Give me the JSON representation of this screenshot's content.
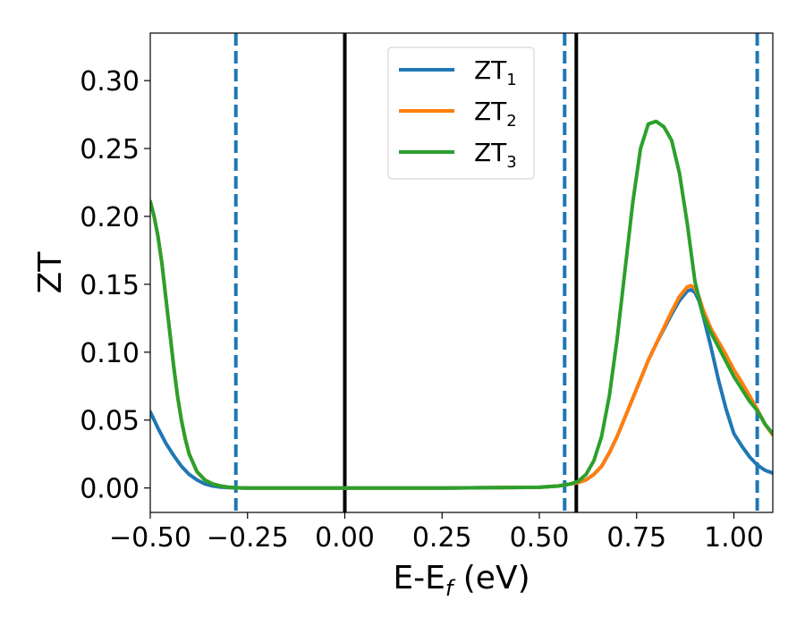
{
  "chart_data": {
    "type": "line",
    "title": "",
    "xlabel": "E-E",
    "xlabel_sub": "f",
    "xlabel_unit": " (eV)",
    "ylabel": "ZT",
    "xlim": [
      -0.5,
      1.1
    ],
    "ylim": [
      -0.018,
      0.335
    ],
    "xticks": [
      -0.5,
      -0.25,
      0.0,
      0.25,
      0.5,
      0.75,
      1.0
    ],
    "xtick_labels": [
      "−0.50",
      "−0.25",
      "0.00",
      "0.25",
      "0.50",
      "0.75",
      "1.00"
    ],
    "yticks": [
      0.0,
      0.05,
      0.1,
      0.15,
      0.2,
      0.25,
      0.3
    ],
    "ytick_labels": [
      "0.00",
      "0.05",
      "0.10",
      "0.15",
      "0.20",
      "0.25",
      "0.30"
    ],
    "grid": false,
    "legend_position": "top-center",
    "vlines_solid": [
      0.0,
      0.595
    ],
    "vlines_dashed": [
      -0.28,
      0.565,
      1.06
    ],
    "vline_solid_color": "#000000",
    "vline_dashed_color": "#1f77b4",
    "series": [
      {
        "name": "ZT",
        "name_sub": "1",
        "color": "#1f77b4",
        "x": [
          -0.5,
          -0.48,
          -0.46,
          -0.44,
          -0.42,
          -0.4,
          -0.38,
          -0.36,
          -0.34,
          -0.32,
          -0.3,
          -0.28,
          -0.25,
          -0.2,
          0.0,
          0.25,
          0.5,
          0.55,
          0.58,
          0.6,
          0.62,
          0.64,
          0.66,
          0.68,
          0.7,
          0.72,
          0.74,
          0.76,
          0.78,
          0.8,
          0.82,
          0.84,
          0.86,
          0.88,
          0.89,
          0.9,
          0.91,
          0.92,
          0.94,
          0.96,
          0.98,
          1.0,
          1.02,
          1.04,
          1.06,
          1.08,
          1.1
        ],
        "y": [
          0.056,
          0.044,
          0.033,
          0.024,
          0.016,
          0.01,
          0.006,
          0.003,
          0.0015,
          0.0007,
          0.0003,
          0.0001,
          0.0,
          0.0,
          0.0,
          0.0,
          0.0005,
          0.0015,
          0.003,
          0.004,
          0.006,
          0.01,
          0.016,
          0.026,
          0.038,
          0.052,
          0.066,
          0.08,
          0.094,
          0.106,
          0.117,
          0.128,
          0.138,
          0.145,
          0.146,
          0.144,
          0.138,
          0.128,
          0.105,
          0.08,
          0.058,
          0.04,
          0.031,
          0.023,
          0.017,
          0.013,
          0.011
        ]
      },
      {
        "name": "ZT",
        "name_sub": "2",
        "color": "#ff7f0e",
        "x": [
          -0.5,
          -0.49,
          -0.48,
          -0.47,
          -0.46,
          -0.45,
          -0.44,
          -0.43,
          -0.42,
          -0.41,
          -0.4,
          -0.38,
          -0.36,
          -0.34,
          -0.32,
          -0.3,
          -0.28,
          -0.25,
          -0.2,
          0.0,
          0.25,
          0.5,
          0.55,
          0.58,
          0.6,
          0.62,
          0.64,
          0.66,
          0.68,
          0.7,
          0.72,
          0.74,
          0.76,
          0.78,
          0.8,
          0.82,
          0.84,
          0.86,
          0.88,
          0.89,
          0.9,
          0.91,
          0.92,
          0.94,
          0.96,
          0.98,
          1.0,
          1.02,
          1.04,
          1.06,
          1.08,
          1.1
        ],
        "y": [
          0.211,
          0.2,
          0.185,
          0.165,
          0.14,
          0.115,
          0.09,
          0.068,
          0.05,
          0.036,
          0.025,
          0.012,
          0.006,
          0.003,
          0.0015,
          0.0006,
          0.0002,
          0.0,
          0.0,
          0.0,
          0.0,
          0.0005,
          0.0015,
          0.003,
          0.004,
          0.006,
          0.01,
          0.016,
          0.026,
          0.038,
          0.052,
          0.066,
          0.08,
          0.094,
          0.106,
          0.118,
          0.13,
          0.141,
          0.148,
          0.149,
          0.147,
          0.141,
          0.132,
          0.118,
          0.108,
          0.098,
          0.087,
          0.078,
          0.068,
          0.058,
          0.047,
          0.039
        ]
      },
      {
        "name": "ZT",
        "name_sub": "3",
        "color": "#2ca02c",
        "x": [
          -0.5,
          -0.49,
          -0.48,
          -0.47,
          -0.46,
          -0.45,
          -0.44,
          -0.43,
          -0.42,
          -0.41,
          -0.4,
          -0.38,
          -0.36,
          -0.34,
          -0.32,
          -0.3,
          -0.28,
          -0.25,
          -0.2,
          0.0,
          0.25,
          0.5,
          0.55,
          0.58,
          0.6,
          0.62,
          0.64,
          0.66,
          0.68,
          0.7,
          0.72,
          0.74,
          0.76,
          0.78,
          0.8,
          0.82,
          0.84,
          0.86,
          0.88,
          0.9,
          0.92,
          0.94,
          0.96,
          0.98,
          1.0,
          1.02,
          1.04,
          1.06,
          1.08,
          1.1
        ],
        "y": [
          0.211,
          0.2,
          0.185,
          0.165,
          0.14,
          0.115,
          0.09,
          0.068,
          0.05,
          0.036,
          0.025,
          0.012,
          0.006,
          0.003,
          0.0015,
          0.0006,
          0.0002,
          0.0,
          0.0,
          0.0,
          0.0,
          0.0005,
          0.0015,
          0.003,
          0.005,
          0.01,
          0.02,
          0.038,
          0.068,
          0.11,
          0.16,
          0.21,
          0.25,
          0.268,
          0.27,
          0.266,
          0.256,
          0.232,
          0.195,
          0.152,
          0.128,
          0.115,
          0.104,
          0.093,
          0.082,
          0.073,
          0.064,
          0.057,
          0.047,
          0.04
        ]
      }
    ]
  }
}
